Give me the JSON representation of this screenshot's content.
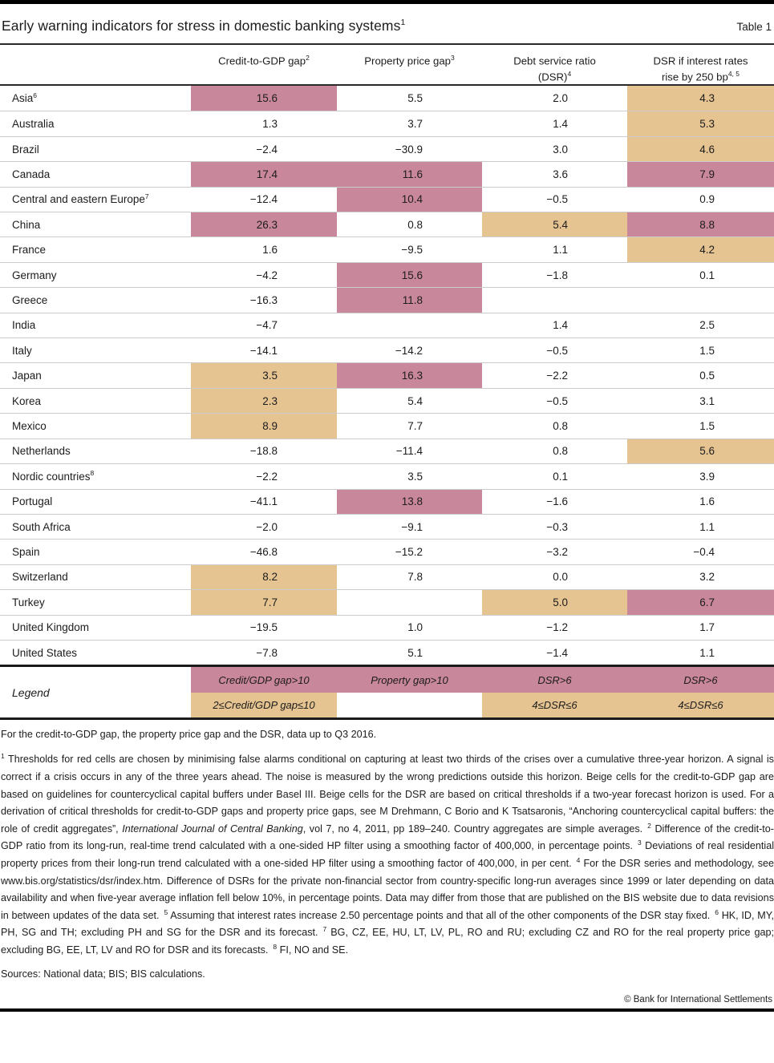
{
  "header": {
    "title": "Early warning indicators for stress in domestic banking systems",
    "title_sup": "1",
    "table_label": "Table 1"
  },
  "columns": [
    {
      "line1": "Credit-to-GDP gap",
      "sup1": "2",
      "line2": "",
      "sup2": ""
    },
    {
      "line1": "Property price gap",
      "sup1": "3",
      "line2": "",
      "sup2": ""
    },
    {
      "line1": "Debt service ratio",
      "sup1": "",
      "line2": "(DSR)",
      "sup2": "4"
    },
    {
      "line1": "DSR if interest rates",
      "sup1": "",
      "line2": "rise by 250 bp",
      "sup2": "4, 5"
    }
  ],
  "colors": {
    "red_cell": "#c9879b",
    "beige_cell": "#e6c492"
  },
  "table": {
    "rows": [
      {
        "country": "Asia",
        "sup": "6",
        "cells": [
          {
            "v": "15.6",
            "bg": "pink"
          },
          {
            "v": "5.5"
          },
          {
            "v": "2.0"
          },
          {
            "v": "4.3",
            "bg": "beige"
          }
        ]
      },
      {
        "country": "Australia",
        "sup": "",
        "cells": [
          {
            "v": "1.3"
          },
          {
            "v": "3.7"
          },
          {
            "v": "1.4"
          },
          {
            "v": "5.3",
            "bg": "beige"
          }
        ]
      },
      {
        "country": "Brazil",
        "sup": "",
        "cells": [
          {
            "v": "−2.4"
          },
          {
            "v": "−30.9"
          },
          {
            "v": "3.0"
          },
          {
            "v": "4.6",
            "bg": "beige"
          }
        ]
      },
      {
        "country": "Canada",
        "sup": "",
        "cells": [
          {
            "v": "17.4",
            "bg": "pink"
          },
          {
            "v": "11.6",
            "bg": "pink"
          },
          {
            "v": "3.6"
          },
          {
            "v": "7.9",
            "bg": "pink"
          }
        ]
      },
      {
        "country": "Central and eastern Europe",
        "sup": "7",
        "cells": [
          {
            "v": "−12.4"
          },
          {
            "v": "10.4",
            "bg": "pink"
          },
          {
            "v": "−0.5"
          },
          {
            "v": "0.9"
          }
        ]
      },
      {
        "country": "China",
        "sup": "",
        "cells": [
          {
            "v": "26.3",
            "bg": "pink"
          },
          {
            "v": "0.8"
          },
          {
            "v": "5.4",
            "bg": "beige"
          },
          {
            "v": "8.8",
            "bg": "pink"
          }
        ]
      },
      {
        "country": "France",
        "sup": "",
        "cells": [
          {
            "v": "1.6"
          },
          {
            "v": "−9.5"
          },
          {
            "v": "1.1"
          },
          {
            "v": "4.2",
            "bg": "beige"
          }
        ]
      },
      {
        "country": "Germany",
        "sup": "",
        "cells": [
          {
            "v": "−4.2"
          },
          {
            "v": "15.6",
            "bg": "pink"
          },
          {
            "v": "−1.8"
          },
          {
            "v": "0.1"
          }
        ]
      },
      {
        "country": "Greece",
        "sup": "",
        "cells": [
          {
            "v": "−16.3"
          },
          {
            "v": "11.8",
            "bg": "pink"
          },
          {
            "v": ""
          },
          {
            "v": ""
          }
        ]
      },
      {
        "country": "India",
        "sup": "",
        "cells": [
          {
            "v": "−4.7"
          },
          {
            "v": ""
          },
          {
            "v": "1.4"
          },
          {
            "v": "2.5"
          }
        ]
      },
      {
        "country": "Italy",
        "sup": "",
        "cells": [
          {
            "v": "−14.1"
          },
          {
            "v": "−14.2"
          },
          {
            "v": "−0.5"
          },
          {
            "v": "1.5"
          }
        ]
      },
      {
        "country": "Japan",
        "sup": "",
        "cells": [
          {
            "v": "3.5",
            "bg": "beige"
          },
          {
            "v": "16.3",
            "bg": "pink"
          },
          {
            "v": "−2.2"
          },
          {
            "v": "0.5"
          }
        ]
      },
      {
        "country": "Korea",
        "sup": "",
        "cells": [
          {
            "v": "2.3",
            "bg": "beige"
          },
          {
            "v": "5.4"
          },
          {
            "v": "−0.5"
          },
          {
            "v": "3.1"
          }
        ]
      },
      {
        "country": "Mexico",
        "sup": "",
        "cells": [
          {
            "v": "8.9",
            "bg": "beige"
          },
          {
            "v": "7.7"
          },
          {
            "v": "0.8"
          },
          {
            "v": "1.5"
          }
        ]
      },
      {
        "country": "Netherlands",
        "sup": "",
        "cells": [
          {
            "v": "−18.8"
          },
          {
            "v": "−11.4"
          },
          {
            "v": "0.8"
          },
          {
            "v": "5.6",
            "bg": "beige"
          }
        ]
      },
      {
        "country": "Nordic countries",
        "sup": "8",
        "cells": [
          {
            "v": "−2.2"
          },
          {
            "v": "3.5"
          },
          {
            "v": "0.1"
          },
          {
            "v": "3.9"
          }
        ]
      },
      {
        "country": "Portugal",
        "sup": "",
        "cells": [
          {
            "v": "−41.1"
          },
          {
            "v": "13.8",
            "bg": "pink"
          },
          {
            "v": "−1.6"
          },
          {
            "v": "1.6"
          }
        ]
      },
      {
        "country": "South Africa",
        "sup": "",
        "cells": [
          {
            "v": "−2.0"
          },
          {
            "v": "−9.1"
          },
          {
            "v": "−0.3"
          },
          {
            "v": "1.1"
          }
        ]
      },
      {
        "country": "Spain",
        "sup": "",
        "cells": [
          {
            "v": "−46.8"
          },
          {
            "v": "−15.2"
          },
          {
            "v": "−3.2"
          },
          {
            "v": "−0.4"
          }
        ]
      },
      {
        "country": "Switzerland",
        "sup": "",
        "cells": [
          {
            "v": "8.2",
            "bg": "beige"
          },
          {
            "v": "7.8"
          },
          {
            "v": "0.0"
          },
          {
            "v": "3.2"
          }
        ]
      },
      {
        "country": "Turkey",
        "sup": "",
        "cells": [
          {
            "v": "7.7",
            "bg": "beige"
          },
          {
            "v": ""
          },
          {
            "v": "5.0",
            "bg": "beige"
          },
          {
            "v": "6.7",
            "bg": "pink"
          }
        ]
      },
      {
        "country": "United Kingdom",
        "sup": "",
        "cells": [
          {
            "v": "−19.5"
          },
          {
            "v": "1.0"
          },
          {
            "v": "−1.2"
          },
          {
            "v": "1.7"
          }
        ]
      },
      {
        "country": "United States",
        "sup": "",
        "cells": [
          {
            "v": "−7.8"
          },
          {
            "v": "5.1"
          },
          {
            "v": "−1.4"
          },
          {
            "v": "1.1"
          }
        ]
      }
    ]
  },
  "legend": {
    "label": "Legend",
    "red_row": [
      "Credit/GDP gap>10",
      "Property gap>10",
      "DSR>6",
      "DSR>6"
    ],
    "beige_row": [
      "2≤Credit/GDP gap≤10",
      "",
      "4≤DSR≤6",
      "4≤DSR≤6"
    ]
  },
  "notes": {
    "data_note": "For the credit-to-GDP gap, the property price gap and the DSR, data up to Q3 2016.",
    "sources": "Sources: National data; BIS; BIS calculations.",
    "copyright": "© Bank for International Settlements"
  },
  "footnotes": {
    "fn1_sup": "1",
    "fn1a": "Thresholds for red cells are chosen by minimising false alarms conditional on capturing at least two thirds of the crises over a cumulative three-year horizon. A signal is correct if a crisis occurs in any of the three years ahead. The noise is measured by the wrong predictions outside this horizon. Beige cells for the credit-to-GDP gap are based on guidelines for countercyclical capital buffers under Basel III. Beige cells for the DSR are based on critical thresholds if a two-year forecast horizon is used. For a derivation of critical thresholds for credit-to-GDP gaps and property price gaps, see M Drehmann, C Borio and K Tsatsaronis, “Anchoring countercyclical capital buffers: the role of credit aggregates”,",
    "fn1_italic": "International Journal of Central Banking",
    "fn1b": ", vol 7, no 4, 2011, pp 189–240. Country aggregates are simple averages.",
    "fn2_sup": "2",
    "fn2": "Difference of the credit-to-GDP ratio from its long-run, real-time trend calculated with a one-sided HP filter using a smoothing factor of 400,000, in percentage points.",
    "fn3_sup": "3",
    "fn3": "Deviations of real residential property prices from their long-run trend calculated with a one-sided HP filter using a smoothing factor of 400,000, in per cent.",
    "fn4_sup": "4",
    "fn4": "For the DSR series and methodology, see www.bis.org/statistics/dsr/index.htm. Difference of DSRs for the private non-financial sector from country-specific long-run averages since 1999 or later depending on data availability and when five-year average inflation fell below 10%, in percentage points. Data may differ from those that are published on the BIS website due to data revisions in between updates of the data set.",
    "fn5_sup": "5",
    "fn5": "Assuming that interest rates increase 2.50 percentage points and that all of the other components of the DSR stay fixed.",
    "fn6_sup": "6",
    "fn6": "HK, ID, MY, PH, SG and TH; excluding PH and SG for the DSR and its forecast.",
    "fn7_sup": "7",
    "fn7": "BG, CZ, EE, HU, LT, LV, PL, RO and RU; excluding CZ and RO for the real property price gap; excluding BG, EE, LT, LV and RO for DSR and its forecasts.",
    "fn8_sup": "8",
    "fn8": "FI, NO and SE."
  }
}
